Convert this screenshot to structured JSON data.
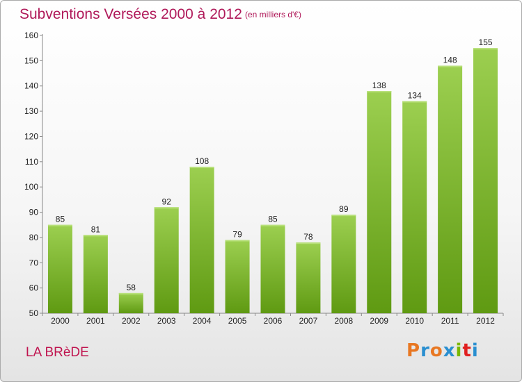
{
  "page": {
    "title": "Subventions Versées 2000 à 2012",
    "subtitle": "(en milliers d'€)",
    "commune": "LA BRèDE",
    "logo_text": "Proxiti",
    "logo_colors": [
      "#e87722",
      "#2a8fd0",
      "#e87722",
      "#2a8fd0",
      "#7ab800",
      "#e02020",
      "#2a8fd0"
    ]
  },
  "chart_data": {
    "type": "bar",
    "title": "Subventions Versées 2000 à 2012",
    "subtitle": "(en milliers d'€)",
    "categories": [
      "2000",
      "2001",
      "2002",
      "2003",
      "2004",
      "2005",
      "2006",
      "2007",
      "2008",
      "2009",
      "2010",
      "2011",
      "2012"
    ],
    "values": [
      85,
      81,
      58,
      92,
      108,
      79,
      85,
      78,
      89,
      138,
      134,
      148,
      155
    ],
    "ylim": [
      50,
      160
    ],
    "yticks": [
      50,
      60,
      70,
      80,
      90,
      100,
      110,
      120,
      130,
      140,
      150,
      160
    ],
    "grid": false,
    "bar_color_top": "#9ccf50",
    "bar_color_bottom": "#5f9a12",
    "axis_color": "#888888",
    "label_color": "#222222"
  }
}
